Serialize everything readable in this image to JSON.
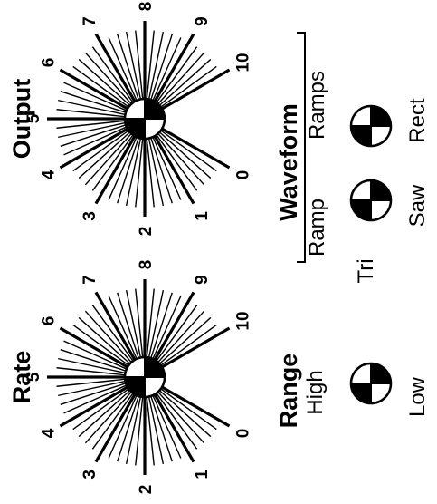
{
  "knobs": [
    {
      "id": "rate",
      "title": "Rate",
      "scale": [
        "0",
        "1",
        "2",
        "3",
        "4",
        "5",
        "6",
        "7",
        "8",
        "9",
        "10"
      ]
    },
    {
      "id": "output",
      "title": "Output",
      "scale": [
        "0",
        "1",
        "2",
        "3",
        "4",
        "5",
        "6",
        "7",
        "8",
        "9",
        "10"
      ]
    }
  ],
  "range": {
    "title": "Range",
    "options": [
      "High",
      "Low"
    ]
  },
  "waveform": {
    "title": "Waveform",
    "group_a": {
      "label": "Ramp",
      "option": "Tri"
    },
    "group_b": {
      "label": "Ramps",
      "option": "Saw"
    },
    "option_c": "Rect"
  },
  "colors": {
    "ink": "#000000",
    "paper": "#ffffff"
  }
}
